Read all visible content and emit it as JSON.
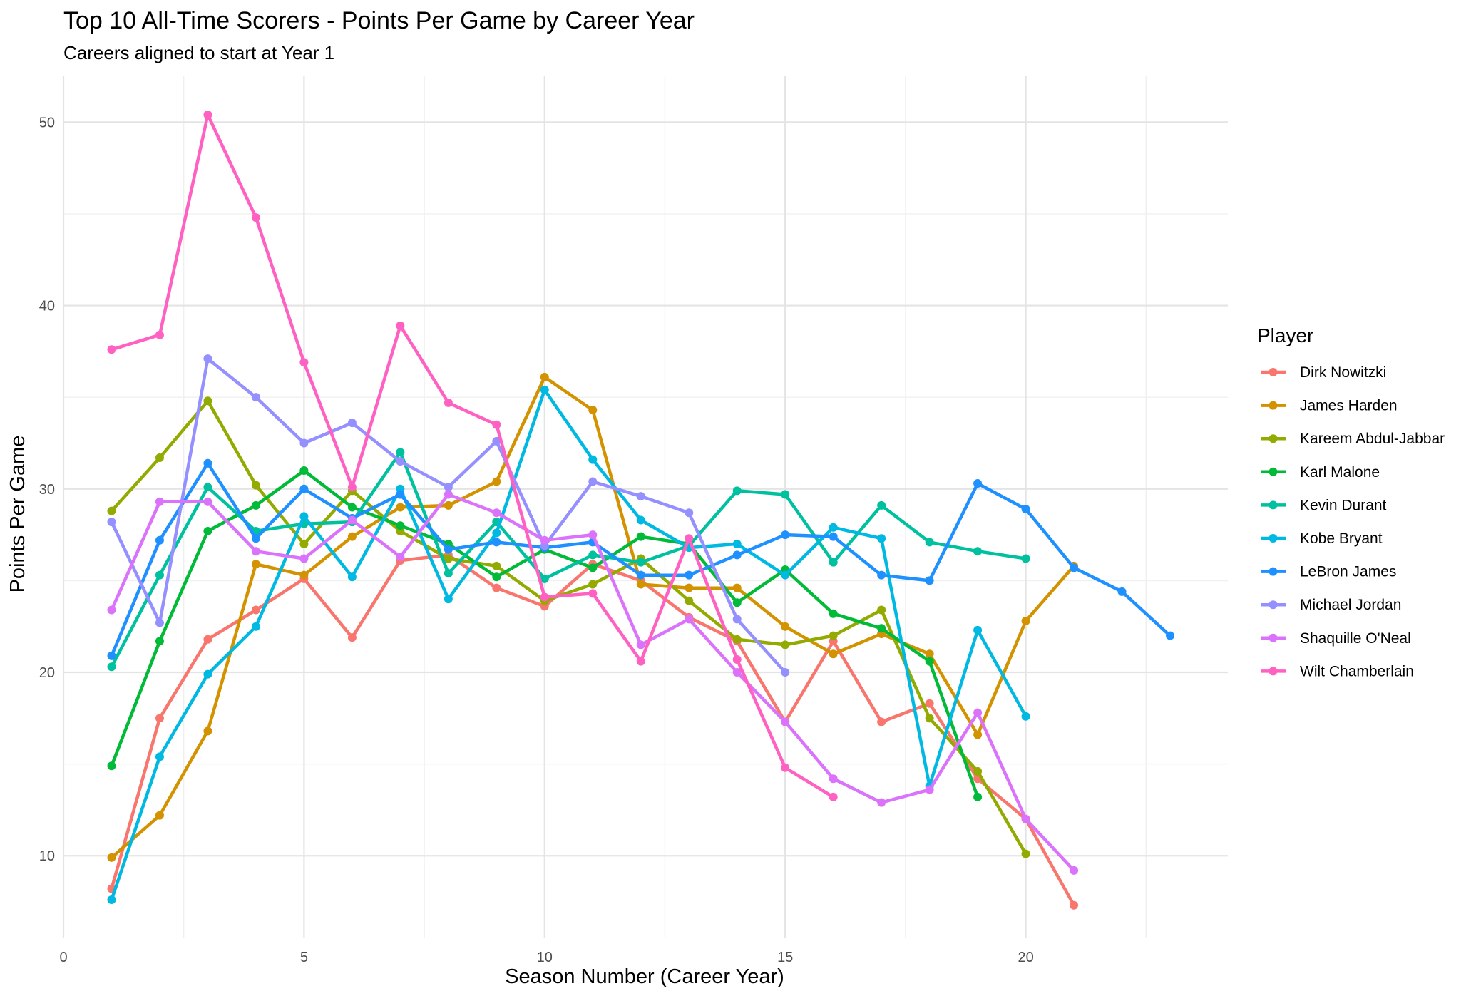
{
  "chart_data": {
    "type": "line",
    "title": "Top 10 All-Time Scorers - Points Per Game by Career Year",
    "subtitle": "Careers aligned to start at Year 1",
    "xlabel": "Season Number (Career Year)",
    "ylabel": "Points Per Game",
    "xlim": [
      0,
      24.2
    ],
    "ylim": [
      5.5,
      52.5
    ],
    "xticks": [
      0,
      5,
      10,
      15,
      20
    ],
    "yticks": [
      10,
      20,
      30,
      40,
      50
    ],
    "grid": true,
    "legend": {
      "title": "Player",
      "position": "right"
    },
    "series": [
      {
        "name": "Dirk Nowitzki",
        "color": "#F8766D",
        "x": [
          1,
          2,
          3,
          4,
          5,
          6,
          7,
          8,
          9,
          10,
          11,
          12,
          13,
          14,
          15,
          16,
          17,
          18,
          19,
          20,
          21
        ],
        "y": [
          8.2,
          17.5,
          21.8,
          23.4,
          25.1,
          21.9,
          26.1,
          26.4,
          24.6,
          23.6,
          25.9,
          25.0,
          23.0,
          21.7,
          17.3,
          21.7,
          17.3,
          18.3,
          14.2,
          12.0,
          7.3
        ]
      },
      {
        "name": "James Harden",
        "color": "#D39200",
        "x": [
          1,
          2,
          3,
          4,
          5,
          6,
          7,
          8,
          9,
          10,
          11,
          12,
          13,
          14,
          15,
          16,
          17,
          18,
          19,
          20,
          21
        ],
        "y": [
          9.9,
          12.2,
          16.8,
          25.9,
          25.3,
          27.4,
          29.0,
          29.1,
          30.4,
          36.1,
          34.3,
          24.8,
          24.6,
          24.6,
          22.5,
          21.0,
          22.1,
          21.0,
          16.6,
          22.8,
          25.8
        ]
      },
      {
        "name": "Kareem Abdul-Jabbar",
        "color": "#93AA00",
        "x": [
          1,
          2,
          3,
          4,
          5,
          6,
          7,
          8,
          9,
          10,
          11,
          12,
          13,
          14,
          15,
          16,
          17,
          18,
          19,
          20
        ],
        "y": [
          28.8,
          31.7,
          34.8,
          30.2,
          27.0,
          29.9,
          27.7,
          26.2,
          25.8,
          23.9,
          24.8,
          26.2,
          23.9,
          21.8,
          21.5,
          22.0,
          23.4,
          17.5,
          14.6,
          10.1
        ]
      },
      {
        "name": "Karl Malone",
        "color": "#00BA38",
        "x": [
          1,
          2,
          3,
          4,
          5,
          6,
          7,
          8,
          9,
          10,
          11,
          12,
          13,
          14,
          15,
          16,
          17,
          18,
          19
        ],
        "y": [
          14.9,
          21.7,
          27.7,
          29.1,
          31.0,
          29.0,
          28.0,
          27.0,
          25.2,
          26.7,
          25.7,
          27.4,
          27.0,
          23.8,
          25.6,
          23.2,
          22.4,
          20.6,
          13.2
        ]
      },
      {
        "name": "Kevin Durant",
        "color": "#00C19F",
        "x": [
          1,
          2,
          3,
          4,
          5,
          6,
          7,
          8,
          9,
          10,
          11,
          12,
          13,
          14,
          15,
          16,
          17,
          18,
          19,
          20
        ],
        "y": [
          20.3,
          25.3,
          30.1,
          27.7,
          28.1,
          28.2,
          32.0,
          25.4,
          28.2,
          25.1,
          26.4,
          26.0,
          26.9,
          29.9,
          29.7,
          26.0,
          29.1,
          27.1,
          26.6,
          26.2
        ]
      },
      {
        "name": "Kobe Bryant",
        "color": "#00B9E3",
        "x": [
          1,
          2,
          3,
          4,
          5,
          6,
          7,
          8,
          9,
          10,
          11,
          12,
          13,
          14,
          15,
          16,
          17,
          18,
          19,
          20
        ],
        "y": [
          7.6,
          15.4,
          19.9,
          22.5,
          28.5,
          25.2,
          30.0,
          24.0,
          27.6,
          35.4,
          31.6,
          28.3,
          26.8,
          27.0,
          25.3,
          27.9,
          27.3,
          13.8,
          22.3,
          17.6
        ]
      },
      {
        "name": "LeBron James",
        "color": "#1E90FF",
        "x": [
          1,
          2,
          3,
          4,
          5,
          6,
          7,
          8,
          9,
          10,
          11,
          12,
          13,
          14,
          15,
          16,
          17,
          18,
          19,
          20,
          21,
          22,
          23
        ],
        "y": [
          20.9,
          27.2,
          31.4,
          27.3,
          30.0,
          28.4,
          29.7,
          26.7,
          27.1,
          26.8,
          27.1,
          25.3,
          25.3,
          26.4,
          27.5,
          27.4,
          25.3,
          25.0,
          30.3,
          28.9,
          25.7,
          24.4,
          22.0
        ]
      },
      {
        "name": "Michael Jordan",
        "color": "#9590FF",
        "x": [
          1,
          2,
          3,
          4,
          5,
          6,
          7,
          8,
          9,
          10,
          11,
          12,
          13,
          14,
          15
        ],
        "y": [
          28.2,
          22.7,
          37.1,
          35.0,
          32.5,
          33.6,
          31.5,
          30.1,
          32.6,
          26.9,
          30.4,
          29.6,
          28.7,
          22.9,
          20.0
        ]
      },
      {
        "name": "Shaquille O'Neal",
        "color": "#DB72FB",
        "x": [
          1,
          2,
          3,
          4,
          5,
          6,
          7,
          8,
          9,
          10,
          11,
          12,
          13,
          14,
          15,
          16,
          17,
          18,
          19,
          20,
          21
        ],
        "y": [
          23.4,
          29.3,
          29.3,
          26.6,
          26.2,
          28.3,
          26.3,
          29.7,
          28.7,
          27.2,
          27.5,
          21.5,
          22.9,
          20.0,
          17.3,
          14.2,
          12.9,
          13.6,
          17.8,
          12.0,
          9.2
        ]
      },
      {
        "name": "Wilt Chamberlain",
        "color": "#FF61C3",
        "x": [
          1,
          2,
          3,
          4,
          5,
          6,
          7,
          8,
          9,
          10,
          11,
          12,
          13,
          14,
          15,
          16
        ],
        "y": [
          37.6,
          38.4,
          50.4,
          44.8,
          36.9,
          30.1,
          38.9,
          34.7,
          33.5,
          24.1,
          24.3,
          20.6,
          27.3,
          20.7,
          14.8,
          13.2
        ]
      }
    ]
  }
}
